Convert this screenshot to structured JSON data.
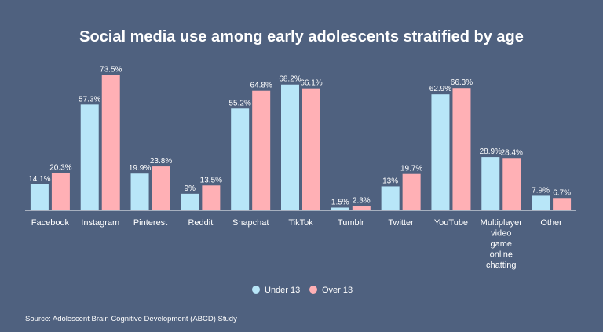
{
  "chart_data": {
    "type": "bar",
    "title": "Social media use among early adolescents stratified by age",
    "categories": [
      "Facebook",
      "Instagram",
      "Pinterest",
      "Reddit",
      "Snapchat",
      "TikTok",
      "Tumblr",
      "Twitter",
      "YouTube",
      "Multiplayer video game online chatting",
      "Other"
    ],
    "category_lines": [
      [
        "Facebook"
      ],
      [
        "Instagram"
      ],
      [
        "Pinterest"
      ],
      [
        "Reddit"
      ],
      [
        "Snapchat"
      ],
      [
        "TikTok"
      ],
      [
        "Tumblr"
      ],
      [
        "Twitter"
      ],
      [
        "YouTube"
      ],
      [
        "Multiplayer",
        "video",
        "game",
        "online",
        "chatting"
      ],
      [
        "Other"
      ]
    ],
    "series": [
      {
        "name": "Under 13",
        "color": "#b8e6f8",
        "values": [
          14.1,
          57.3,
          19.9,
          9,
          55.2,
          68.2,
          1.5,
          13,
          62.9,
          28.9,
          7.9
        ]
      },
      {
        "name": "Over 13",
        "color": "#ffb0b5",
        "values": [
          20.3,
          73.5,
          23.8,
          13.5,
          64.8,
          66.1,
          2.3,
          19.7,
          66.3,
          28.4,
          6.7
        ]
      }
    ],
    "value_suffix": "%",
    "ylim": [
      0,
      80
    ],
    "grid": false,
    "legend_position": "bottom-center",
    "source": "Source: Adolescent Brain Cognitive Development (ABCD) Study"
  }
}
